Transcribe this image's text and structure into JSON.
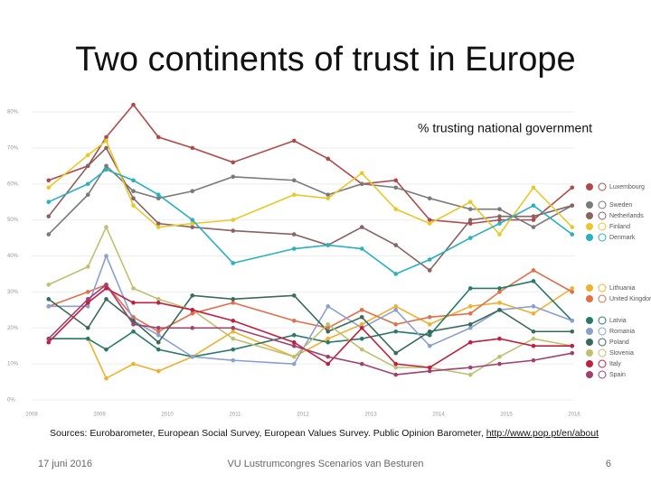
{
  "slide": {
    "title": "Two continents of trust in Europe",
    "source": "Sources: Eurobarometer, European Social Survey, European Values Survey. Public Opinion Barometer,",
    "source_link": "http://www.pop.pt/en/about",
    "date": "17 juni 2016",
    "footer": "VU Lustrumcongres Scenarios van Besturen",
    "page": "6"
  },
  "chart_data": {
    "type": "line",
    "subtitle": "% trusting national government",
    "x": [
      2008.25,
      2008.83,
      2009.1,
      2009.5,
      2009.87,
      2010.37,
      2010.97,
      2011.87,
      2012.37,
      2012.87,
      2013.37,
      2013.87,
      2014.47,
      2014.9,
      2015.4,
      2015.97
    ],
    "xlim": [
      2008,
      2016
    ],
    "xticks": [
      2008,
      2009,
      2010,
      2011,
      2012,
      2013,
      2014,
      2015,
      2016
    ],
    "ylim": [
      0,
      80
    ],
    "yticks": [
      {
        "value": 0,
        "label": "0%"
      },
      {
        "value": 10,
        "label": "10%"
      },
      {
        "value": 20,
        "label": "20%"
      },
      {
        "value": 30,
        "label": "30%"
      },
      {
        "value": 40,
        "label": "40%"
      },
      {
        "value": 50,
        "label": "50%"
      },
      {
        "value": 60,
        "label": "60%"
      },
      {
        "value": 70,
        "label": "70%"
      },
      {
        "value": 80,
        "label": "80%"
      }
    ],
    "grid": true,
    "series": [
      {
        "name": "Luxembourg",
        "color": "#b04a4a",
        "values": [
          61,
          65,
          73,
          82,
          73,
          70,
          66,
          72,
          67,
          60,
          61,
          50,
          49,
          50,
          50,
          59
        ]
      },
      {
        "name": "Sweden",
        "color": "#7a7a7a",
        "values": [
          46,
          57,
          65,
          58,
          56,
          58,
          62,
          61,
          57,
          60,
          59,
          56,
          53,
          53,
          48,
          54
        ]
      },
      {
        "name": "Netherlands",
        "color": "#8a6262",
        "values": [
          51,
          65,
          70,
          56,
          49,
          48,
          47,
          46,
          43,
          48,
          43,
          36,
          50,
          51,
          51,
          54
        ]
      },
      {
        "name": "Finland",
        "color": "#e8c82a",
        "values": [
          59,
          68,
          72,
          54,
          48,
          49,
          50,
          57,
          56,
          63,
          53,
          49,
          55,
          46,
          59,
          48
        ]
      },
      {
        "name": "Denmark",
        "color": "#2ab0c0",
        "values": [
          55,
          60,
          64,
          61,
          57,
          50,
          38,
          42,
          43,
          42,
          35,
          39,
          45,
          49,
          54,
          46
        ]
      },
      {
        "name": "Lithuania",
        "color": "#f0b030",
        "values": [
          17,
          17,
          6,
          10,
          8,
          12,
          19,
          12,
          17,
          21,
          26,
          21,
          26,
          27,
          24,
          31
        ]
      },
      {
        "name": "United Kingdom",
        "color": "#e0704a",
        "values": [
          26,
          30,
          32,
          23,
          19,
          24,
          27,
          22,
          20,
          25,
          21,
          23,
          24,
          30,
          36,
          30
        ]
      },
      {
        "name": "Latvia",
        "color": "#2a7a6a",
        "values": [
          17,
          17,
          14,
          19,
          14,
          12,
          14,
          18,
          16,
          17,
          19,
          18,
          31,
          31,
          33,
          22
        ]
      },
      {
        "name": "Romania",
        "color": "#8aa0d0",
        "values": [
          26,
          26,
          40,
          22,
          18,
          12,
          11,
          10,
          26,
          20,
          25,
          15,
          20,
          25,
          26,
          22
        ]
      },
      {
        "name": "Poland",
        "color": "#3a6a5a",
        "values": [
          28,
          20,
          28,
          22,
          16,
          29,
          28,
          29,
          19,
          23,
          13,
          19,
          21,
          25,
          19,
          19
        ]
      },
      {
        "name": "Slovenia",
        "color": "#c0c070",
        "values": [
          32,
          37,
          48,
          31,
          28,
          25,
          17,
          12,
          21,
          14,
          9,
          9,
          7,
          12,
          17,
          15
        ]
      },
      {
        "name": "Italy",
        "color": "#c02040",
        "values": [
          16,
          27,
          31,
          27,
          27,
          25,
          22,
          16,
          10,
          20,
          10,
          9,
          16,
          17,
          15,
          15
        ]
      },
      {
        "name": "Spain",
        "color": "#a04070",
        "values": [
          17,
          28,
          32,
          21,
          20,
          20,
          20,
          15,
          12,
          10,
          7,
          8,
          9,
          10,
          11,
          13
        ]
      }
    ]
  }
}
